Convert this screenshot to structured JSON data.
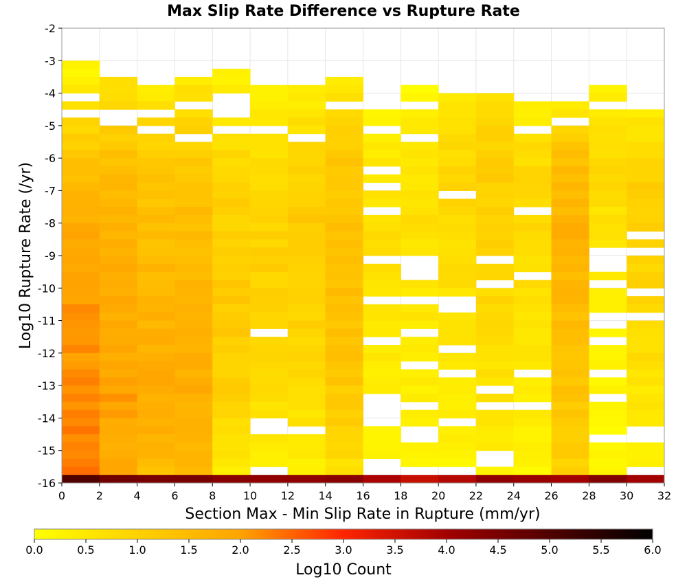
{
  "chart_data": {
    "type": "heatmap",
    "title": "Max Slip Rate Difference vs Rupture Rate",
    "xlabel": "Section Max - Min Slip Rate in Rupture (mm/yr)",
    "ylabel": "Log10 Rupture Rate (/yr)",
    "xlim": [
      0,
      32
    ],
    "ylim": [
      -16,
      -2
    ],
    "x_ticks": [
      "0",
      "2",
      "4",
      "6",
      "8",
      "10",
      "12",
      "14",
      "16",
      "18",
      "20",
      "22",
      "24",
      "26",
      "28",
      "30",
      "32"
    ],
    "y_ticks": [
      "-2",
      "-3",
      "-4",
      "-5",
      "-6",
      "-7",
      "-8",
      "-9",
      "-10",
      "-11",
      "-12",
      "-13",
      "-14",
      "-15",
      "-16"
    ],
    "x_bin_width": 2,
    "y_bin_height": 0.25,
    "grid": true,
    "colorbar": {
      "label": "Log10 Count",
      "range": [
        0,
        6
      ],
      "ticks": [
        "0.0",
        "0.5",
        "1.0",
        "1.5",
        "2.0",
        "2.5",
        "3.0",
        "3.5",
        "4.0",
        "4.5",
        "5.0",
        "5.5",
        "6.0"
      ],
      "colors": [
        "#ffff00",
        "#ffa500",
        "#ff2400",
        "#a00000",
        "#000000"
      ]
    },
    "columns": [
      {
        "x0": 0,
        "top": -3,
        "levels": [
          0.2,
          0.6,
          1.3,
          1.7,
          1.9,
          2.0,
          2.1,
          2.2,
          2.3,
          2.4
        ]
      },
      {
        "x0": 2,
        "top": -3.5,
        "levels": [
          0.7,
          1.0,
          1.4,
          1.6,
          1.7,
          1.8,
          1.9,
          2.0,
          1.9,
          1.8
        ]
      },
      {
        "x0": 4,
        "top": -3.75,
        "levels": [
          0.4,
          0.9,
          1.2,
          1.4,
          1.5,
          1.6,
          1.7,
          1.8,
          1.7,
          1.5
        ]
      },
      {
        "x0": 6,
        "top": -3.5,
        "levels": [
          0.5,
          0.9,
          1.2,
          1.4,
          1.5,
          1.6,
          1.7,
          1.8,
          1.7,
          1.5
        ]
      },
      {
        "x0": 8,
        "top": -3.25,
        "levels": [
          0.2,
          0.5,
          0.8,
          1.0,
          1.1,
          1.2,
          1.1,
          1.0,
          0.8,
          0.4
        ]
      },
      {
        "x0": 10,
        "top": -3.75,
        "levels": [
          0.2,
          0.5,
          0.8,
          0.9,
          1.0,
          1.0,
          0.9,
          0.7,
          0.5,
          0.2
        ]
      },
      {
        "x0": 12,
        "top": -3.75,
        "levels": [
          0.4,
          0.7,
          1.0,
          1.2,
          1.1,
          1.0,
          0.9,
          0.7,
          0.5,
          0.3
        ]
      },
      {
        "x0": 14,
        "top": -3.5,
        "levels": [
          0.4,
          0.9,
          1.2,
          1.3,
          1.4,
          1.4,
          1.3,
          1.2,
          1.0,
          0.6
        ]
      },
      {
        "x0": 16,
        "top": -4.5,
        "levels": [
          0.2,
          0.4,
          0.6,
          0.7,
          0.6,
          0.5,
          0.4,
          0.3,
          0.2,
          0.1
        ]
      },
      {
        "x0": 18,
        "top": -3.75,
        "levels": [
          0.2,
          0.4,
          0.6,
          0.7,
          0.6,
          0.5,
          0.4,
          0.3,
          0.2,
          0.1
        ]
      },
      {
        "x0": 20,
        "top": -4,
        "levels": [
          0.4,
          0.7,
          0.9,
          0.8,
          0.7,
          0.6,
          0.5,
          0.4,
          0.3,
          0.1
        ]
      },
      {
        "x0": 22,
        "top": -4,
        "levels": [
          0.6,
          1.0,
          1.1,
          1.0,
          0.9,
          0.8,
          0.7,
          0.6,
          0.4,
          0.2
        ]
      },
      {
        "x0": 24,
        "top": -4.25,
        "levels": [
          0.4,
          0.7,
          0.9,
          0.8,
          0.7,
          0.6,
          0.5,
          0.4,
          0.3,
          0.1
        ]
      },
      {
        "x0": 26,
        "top": -4.25,
        "levels": [
          0.3,
          1.3,
          1.5,
          1.7,
          1.6,
          1.5,
          1.4,
          1.3,
          1.1,
          1.0
        ]
      },
      {
        "x0": 28,
        "top": -3.75,
        "levels": [
          0.3,
          0.6,
          0.8,
          0.6,
          0.4,
          0.3,
          0.2,
          0.2,
          0.1,
          0.1
        ]
      },
      {
        "x0": 30,
        "top": -4.5,
        "levels": [
          0.4,
          0.8,
          1.1,
          1.0,
          0.9,
          0.8,
          0.7,
          0.5,
          0.4,
          0.2
        ]
      }
    ],
    "bottom_row": {
      "y0": -16,
      "y1": -15.75,
      "levels": [
        5.0,
        4.6,
        4.5,
        4.5,
        4.3,
        4.2,
        4.2,
        4.3,
        3.9,
        3.6,
        3.8,
        4.2,
        4.1,
        4.0,
        4.4,
        4.0
      ]
    }
  }
}
